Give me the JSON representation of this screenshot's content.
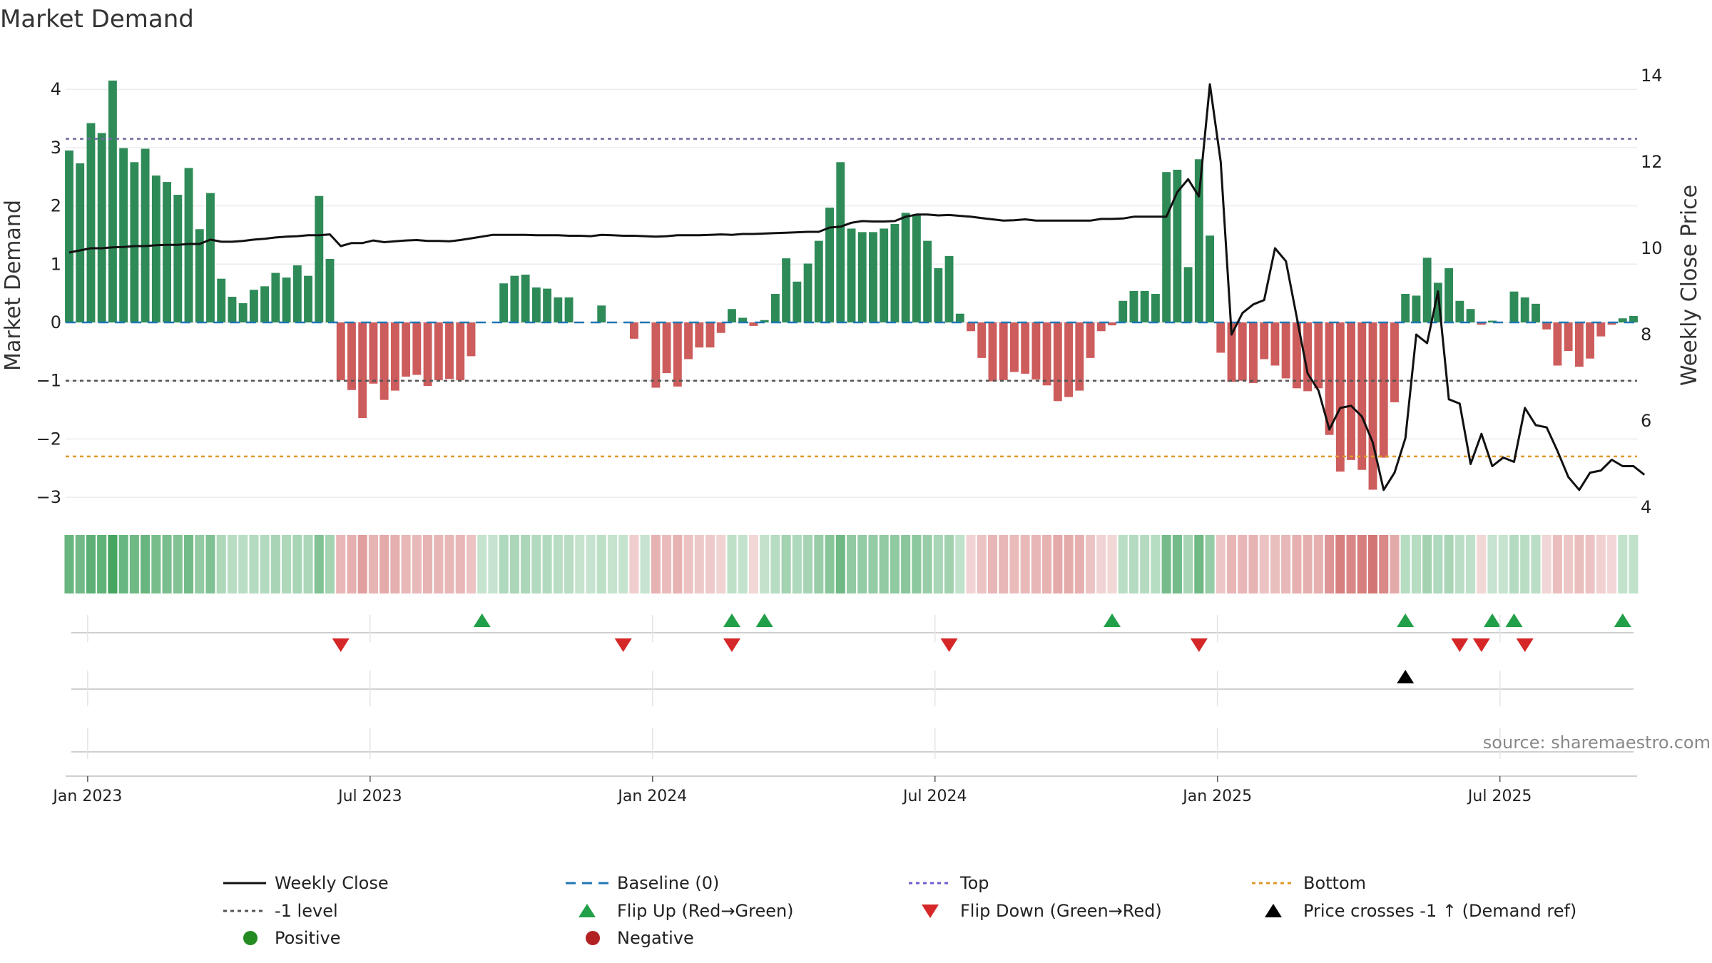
{
  "chart_data": {
    "type": "bar",
    "title": "Market Demand",
    "ylabel_left": "Market Demand",
    "ylabel_right": "Weekly Close Price",
    "ylim_left": [
      -3.3,
      4.5
    ],
    "ylim_right": [
      3.8,
      14.6
    ],
    "yticks_left": [
      "4",
      "3",
      "2",
      "1",
      "0",
      "−1",
      "−2",
      "−3"
    ],
    "yticks_right": [
      "14",
      "12",
      "10",
      "8",
      "6",
      "4"
    ],
    "x_tick_labels": [
      "Jan 2023",
      "Jul 2023",
      "Jan 2024",
      "Jul 2024",
      "Jan 2025",
      "Jul 2025"
    ],
    "reference_lines": {
      "top": 3.15,
      "minus_one": -1.0,
      "bottom": -2.3,
      "baseline": 0
    },
    "series": [
      {
        "name": "Market Demand",
        "values": [
          2.95,
          2.73,
          3.42,
          3.25,
          4.15,
          2.99,
          2.75,
          2.98,
          2.52,
          2.41,
          2.19,
          2.65,
          1.6,
          2.22,
          0.75,
          0.44,
          0.33,
          0.56,
          0.62,
          0.85,
          0.77,
          0.98,
          0.8,
          2.17,
          1.09,
          -0.99,
          -1.16,
          -1.64,
          -1.05,
          -1.33,
          -1.17,
          -0.93,
          -0.9,
          -1.09,
          -0.99,
          -0.97,
          -0.99,
          -0.58,
          0,
          0,
          0.67,
          0.8,
          0.82,
          0.6,
          0.58,
          0.43,
          0.43,
          0,
          0,
          0.29,
          0,
          0,
          -0.28,
          0,
          -1.12,
          -0.87,
          -1.1,
          -0.63,
          -0.43,
          -0.43,
          -0.18,
          0.23,
          0.08,
          -0.06,
          0.04,
          0.49,
          1.1,
          0.7,
          1.01,
          1.4,
          1.97,
          2.75,
          1.61,
          1.55,
          1.55,
          1.61,
          1.69,
          1.88,
          1.84,
          1.4,
          0.93,
          1.14,
          0.15,
          -0.15,
          -0.61,
          -1.01,
          -0.99,
          -0.85,
          -0.88,
          -0.98,
          -1.08,
          -1.35,
          -1.28,
          -1.17,
          -0.61,
          -0.15,
          -0.05,
          0.37,
          0.54,
          0.54,
          0.49,
          2.58,
          2.62,
          0.95,
          2.8,
          1.49,
          -0.52,
          -1.02,
          -1.0,
          -1.04,
          -0.63,
          -0.74,
          -0.96,
          -1.13,
          -1.18,
          -1.13,
          -1.93,
          -2.56,
          -2.36,
          -2.53,
          -2.87,
          -2.32,
          -1.37,
          0.49,
          0.46,
          1.11,
          0.68,
          0.93,
          0.37,
          0.23,
          -0.04,
          0.03,
          0,
          0.53,
          0.43,
          0.32,
          -0.12,
          -0.74,
          -0.49,
          -0.76,
          -0.62,
          -0.24,
          -0.04,
          0.07,
          0.11
        ]
      },
      {
        "name": "Weekly Close",
        "values": [
          9.9,
          9.95,
          10.0,
          10.0,
          10.02,
          10.03,
          10.05,
          10.05,
          10.07,
          10.08,
          10.08,
          10.1,
          10.1,
          10.2,
          10.15,
          10.15,
          10.17,
          10.2,
          10.22,
          10.25,
          10.27,
          10.28,
          10.3,
          10.3,
          10.32,
          10.05,
          10.12,
          10.12,
          10.18,
          10.14,
          10.16,
          10.18,
          10.19,
          10.17,
          10.17,
          10.16,
          10.19,
          10.23,
          10.27,
          10.31,
          10.31,
          10.31,
          10.31,
          10.3,
          10.3,
          10.3,
          10.29,
          10.29,
          10.28,
          10.31,
          10.3,
          10.29,
          10.29,
          10.28,
          10.27,
          10.28,
          10.3,
          10.3,
          10.3,
          10.31,
          10.32,
          10.31,
          10.33,
          10.33,
          10.34,
          10.35,
          10.36,
          10.37,
          10.38,
          10.38,
          10.48,
          10.5,
          10.59,
          10.63,
          10.62,
          10.62,
          10.63,
          10.73,
          10.78,
          10.78,
          10.76,
          10.77,
          10.75,
          10.73,
          10.7,
          10.67,
          10.64,
          10.65,
          10.67,
          10.64,
          10.64,
          10.64,
          10.64,
          10.64,
          10.64,
          10.68,
          10.68,
          10.69,
          10.73,
          10.73,
          10.73,
          10.73,
          11.3,
          11.6,
          11.2,
          13.8,
          12.0,
          8.0,
          8.5,
          8.7,
          8.8,
          10.0,
          9.7,
          8.4,
          7.1,
          6.7,
          5.8,
          6.3,
          6.35,
          6.1,
          5.5,
          4.4,
          4.8,
          5.6,
          8.0,
          7.8,
          9.0,
          6.5,
          6.4,
          5.0,
          5.7,
          4.95,
          5.15,
          5.05,
          6.3,
          5.9,
          5.85,
          5.3,
          4.7,
          4.4,
          4.8,
          4.85,
          5.1,
          4.95,
          4.95,
          4.75
        ]
      }
    ],
    "flip_up_weeks": [
      38,
      61,
      64,
      96,
      123,
      131,
      133,
      143
    ],
    "flip_down_weeks": [
      25,
      51,
      61,
      81,
      104,
      128,
      130,
      134
    ],
    "price_cross_weeks": [
      123
    ]
  },
  "legend": [
    {
      "label": "Weekly Close",
      "kind": "line",
      "color": "#111111"
    },
    {
      "label": "Baseline (0)",
      "kind": "dash",
      "color": "#1f77b4"
    },
    {
      "label": "Top",
      "kind": "dotted",
      "color": "#6b5fd3"
    },
    {
      "label": "Bottom",
      "kind": "dotted",
      "color": "#e0982a"
    },
    {
      "label": "-1 level",
      "kind": "dotted",
      "color": "#555555"
    },
    {
      "label": "Flip Up (Red→Green)",
      "kind": "tri-up",
      "color": "#22a049"
    },
    {
      "label": "Flip Down (Green→Red)",
      "kind": "tri-down",
      "color": "#d62728"
    },
    {
      "label": "Price crosses -1 ↑ (Demand ref)",
      "kind": "tri-up",
      "color": "#000000"
    },
    {
      "label": "Positive",
      "kind": "dot",
      "color": "#228b22"
    },
    {
      "label": "Negative",
      "kind": "dot",
      "color": "#b22222"
    }
  ],
  "source": "source: sharemaestro.com",
  "colors": {
    "positive": "#2e8b57",
    "negative": "#cd5c5c"
  }
}
